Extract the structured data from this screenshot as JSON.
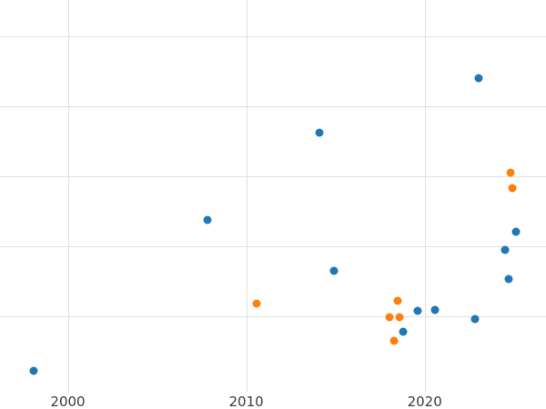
{
  "chart_data": {
    "type": "scatter",
    "title": "",
    "xlabel": "",
    "ylabel": "",
    "grid": true,
    "legend": "none",
    "x_ticks": [
      2000,
      2010,
      2020
    ],
    "x_tick_labels": [
      "2000",
      "2010",
      "2020"
    ],
    "y_gridlines": [
      1,
      2,
      3,
      4,
      5
    ],
    "xlim": [
      1996.2,
      2026.8
    ],
    "ylim": [
      -0.32,
      5.52
    ],
    "colors": {
      "grid": "#e0e0e0",
      "tick_text": "#3a3a3a",
      "series_blue": "#1f77b4",
      "series_orange": "#ff7f0e"
    },
    "series": [
      {
        "name": "blue",
        "color": "#1f77b4",
        "points": [
          {
            "x": 1998.1,
            "y": 0.22
          },
          {
            "x": 2007.8,
            "y": 2.38
          },
          {
            "x": 2014.1,
            "y": 3.62
          },
          {
            "x": 2014.9,
            "y": 1.65
          },
          {
            "x": 2018.8,
            "y": 0.79
          },
          {
            "x": 2019.6,
            "y": 1.08
          },
          {
            "x": 2020.6,
            "y": 1.1
          },
          {
            "x": 2022.8,
            "y": 0.96
          },
          {
            "x": 2023.0,
            "y": 4.4
          },
          {
            "x": 2024.5,
            "y": 1.95
          },
          {
            "x": 2024.7,
            "y": 1.53
          },
          {
            "x": 2025.1,
            "y": 2.21
          }
        ]
      },
      {
        "name": "orange",
        "color": "#ff7f0e",
        "points": [
          {
            "x": 2010.6,
            "y": 1.19
          },
          {
            "x": 2018.0,
            "y": 0.99
          },
          {
            "x": 2018.3,
            "y": 0.65
          },
          {
            "x": 2018.5,
            "y": 1.23
          },
          {
            "x": 2018.6,
            "y": 0.99
          },
          {
            "x": 2024.8,
            "y": 3.06
          },
          {
            "x": 2024.9,
            "y": 2.84
          }
        ]
      }
    ]
  }
}
